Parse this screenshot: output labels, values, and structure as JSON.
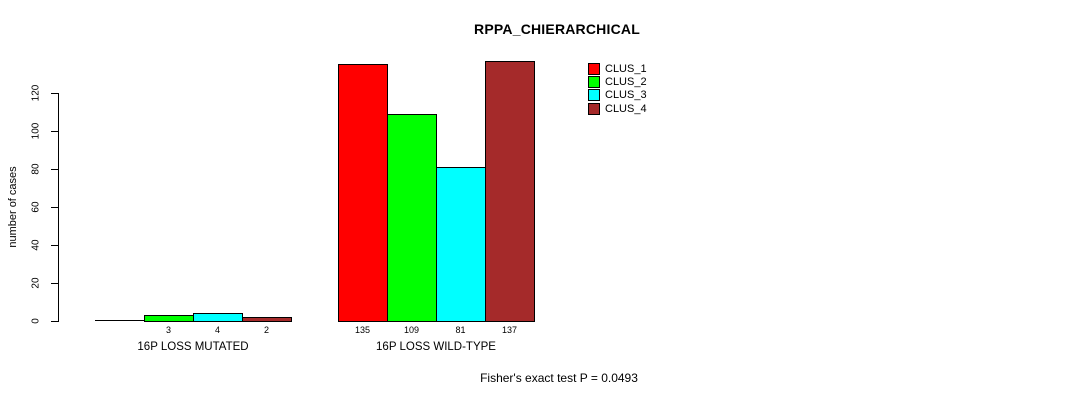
{
  "chart_data": {
    "type": "bar",
    "title": "RPPA_CHIERARCHICAL",
    "ylabel": "number of cases",
    "xlabel": "",
    "categories": [
      "16P LOSS MUTATED",
      "16P LOSS WILD-TYPE"
    ],
    "series": [
      {
        "name": "CLUS_1",
        "color": "#ff0000",
        "values": [
          0,
          135
        ]
      },
      {
        "name": "CLUS_2",
        "color": "#00ff00",
        "values": [
          3,
          109
        ]
      },
      {
        "name": "CLUS_3",
        "color": "#00ffff",
        "values": [
          4,
          81
        ]
      },
      {
        "name": "CLUS_4",
        "color": "#a52a2a",
        "values": [
          2,
          137
        ]
      }
    ],
    "yticks": [
      0,
      20,
      40,
      60,
      80,
      100,
      120
    ],
    "ylim": [
      0,
      120
    ],
    "grid": false,
    "legend_position": "top-right",
    "bar_value_labels_shown": true,
    "zero_value_labels_hidden": true,
    "annotation": "Fisher's exact test P = 0.0493"
  },
  "colors": {
    "background": "#ffffff",
    "axis": "#000000",
    "bar_border": "#000000"
  }
}
